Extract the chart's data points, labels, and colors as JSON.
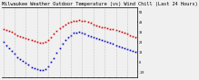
{
  "title": "Milwaukee Weather Outdoor Temperature (vs) Wind Chill (Last 24 Hours)",
  "title_fontsize": 3.8,
  "temp_color": "#cc0000",
  "windchill_color": "#0000bb",
  "background_color": "#f0f0f0",
  "plot_bg_color": "#f0f0f0",
  "grid_color": "#888888",
  "ylim": [
    -15,
    55
  ],
  "yticks": [
    -10,
    0,
    10,
    20,
    30,
    40,
    50
  ],
  "ytick_labels": [
    "-10",
    "0",
    "10",
    "20",
    "30",
    "40",
    "50"
  ],
  "n_points": 48,
  "temp_values": [
    33,
    32,
    31,
    30,
    28,
    27,
    26,
    25,
    24,
    23,
    22,
    21,
    20,
    19,
    19,
    20,
    22,
    25,
    28,
    31,
    34,
    36,
    38,
    39,
    40,
    41,
    41,
    42,
    41,
    41,
    40,
    39,
    38,
    37,
    36,
    35,
    35,
    34,
    33,
    33,
    32,
    31,
    30,
    29,
    28,
    27,
    26,
    25
  ],
  "windchill_values": [
    20,
    17,
    14,
    11,
    8,
    5,
    3,
    1,
    -1,
    -3,
    -5,
    -6,
    -7,
    -8,
    -8,
    -7,
    -4,
    0,
    4,
    9,
    14,
    18,
    22,
    25,
    27,
    29,
    29,
    30,
    29,
    28,
    27,
    26,
    25,
    24,
    23,
    22,
    21,
    20,
    19,
    18,
    17,
    16,
    15,
    14,
    13,
    12,
    11,
    10
  ],
  "vgrid_interval": 4,
  "marker_size": 1.2
}
